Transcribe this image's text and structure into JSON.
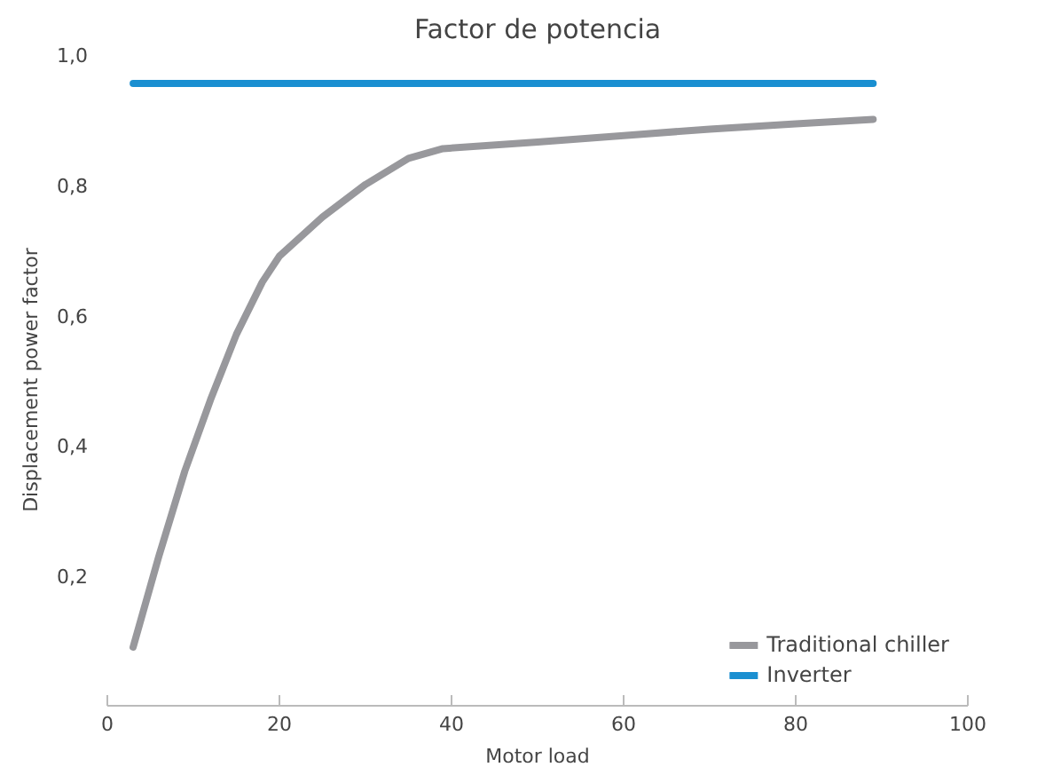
{
  "chart_data": {
    "type": "line",
    "title": "Factor de potencia",
    "xlabel": "Motor load",
    "ylabel": "Displacement power factor",
    "xlim": [
      0,
      100
    ],
    "xticks": [
      0,
      20,
      40,
      60,
      80,
      100
    ],
    "ylim": [
      0,
      1.0
    ],
    "yticks": [
      {
        "value": 0.2,
        "label": "0,2"
      },
      {
        "value": 0.4,
        "label": "0,4"
      },
      {
        "value": 0.6,
        "label": "0,6"
      },
      {
        "value": 0.8,
        "label": "0,8"
      },
      {
        "value": 1.0,
        "label": "1,0"
      }
    ],
    "grid": false,
    "legend": "bottom right",
    "line_style": "solid",
    "marker": "none",
    "series": [
      {
        "name": "Traditional chiller",
        "color": "#98989c",
        "x": [
          3,
          6,
          9,
          12,
          15,
          18,
          20,
          25,
          30,
          35,
          39,
          50,
          60,
          70,
          80,
          89
        ],
        "values": [
          0.09,
          0.23,
          0.36,
          0.47,
          0.57,
          0.65,
          0.69,
          0.75,
          0.8,
          0.84,
          0.855,
          0.865,
          0.875,
          0.885,
          0.893,
          0.9
        ]
      },
      {
        "name": "Inverter",
        "color": "#1a8fd1",
        "x": [
          3,
          89
        ],
        "values": [
          0.955,
          0.955
        ]
      }
    ]
  }
}
